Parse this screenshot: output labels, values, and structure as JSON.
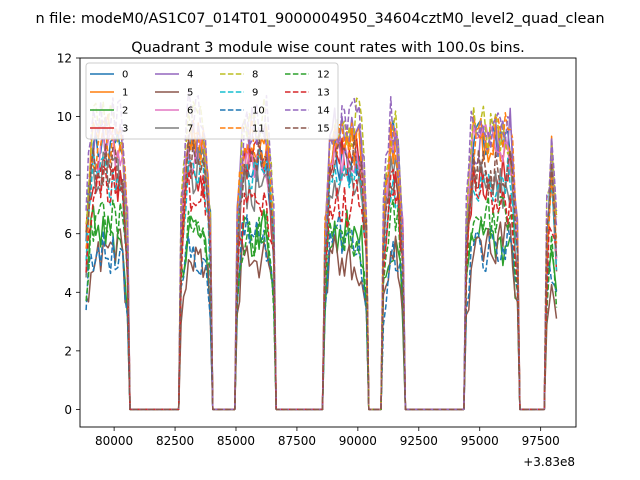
{
  "chart_data": {
    "type": "line",
    "suptitle": "n file: modeM0/AS1C07_014T01_9000004950_34604cztM0_level2_quad_clean",
    "title": "Quadrant 3 module wise count rates with 100.0s bins.",
    "xlabel": "",
    "ylabel": "",
    "x_offset_label": "+3.83e8",
    "xlim": [
      78600,
      98950
    ],
    "ylim": [
      -0.6,
      12.0
    ],
    "x_ticks": [
      80000,
      82500,
      85000,
      87500,
      90000,
      92500,
      95000,
      97500
    ],
    "x_tick_labels": [
      "80000",
      "82500",
      "85000",
      "87500",
      "90000",
      "92500",
      "95000",
      "97500"
    ],
    "y_ticks": [
      0,
      2,
      4,
      6,
      8,
      10,
      12
    ],
    "y_tick_labels": [
      "0",
      "2",
      "4",
      "6",
      "8",
      "10",
      "12"
    ],
    "grid": false,
    "legend_position": "upper-left",
    "legend_columns": 4,
    "segments": [
      {
        "start": 78850,
        "end": 80550
      },
      {
        "start": 82750,
        "end": 83950
      },
      {
        "start": 85050,
        "end": 86550
      },
      {
        "start": 88650,
        "end": 90350
      },
      {
        "start": 91050,
        "end": 91850
      },
      {
        "start": 94450,
        "end": 96550
      },
      {
        "start": 97750,
        "end": 98150
      }
    ],
    "bin_width": 100,
    "series": [
      {
        "name": "0",
        "color": "#1f77b4",
        "dash": "solid",
        "level": 8.8
      },
      {
        "name": "1",
        "color": "#ff7f0e",
        "dash": "solid",
        "level": 9.0
      },
      {
        "name": "2",
        "color": "#2ca02c",
        "dash": "solid",
        "level": 5.9
      },
      {
        "name": "3",
        "color": "#d62728",
        "dash": "solid",
        "level": 8.2
      },
      {
        "name": "4",
        "color": "#9467bd",
        "dash": "solid",
        "level": 9.4
      },
      {
        "name": "5",
        "color": "#8c564b",
        "dash": "solid",
        "level": 5.3
      },
      {
        "name": "6",
        "color": "#e377c2",
        "dash": "solid",
        "level": 8.7
      },
      {
        "name": "7",
        "color": "#7f7f7f",
        "dash": "solid",
        "level": 7.8
      },
      {
        "name": "8",
        "color": "#bcbd22",
        "dash": "dashed",
        "level": 9.6
      },
      {
        "name": "9",
        "color": "#17becf",
        "dash": "dashed",
        "level": 8.0
      },
      {
        "name": "10",
        "color": "#1f77b4",
        "dash": "dashed",
        "level": 5.7
      },
      {
        "name": "11",
        "color": "#ff7f0e",
        "dash": "dashed",
        "level": 9.2
      },
      {
        "name": "12",
        "color": "#2ca02c",
        "dash": "dashed",
        "level": 6.3
      },
      {
        "name": "13",
        "color": "#d62728",
        "dash": "dashed",
        "level": 7.2
      },
      {
        "name": "14",
        "color": "#9467bd",
        "dash": "dashed",
        "level": 9.8
      },
      {
        "name": "15",
        "color": "#8c564b",
        "dash": "dashed",
        "level": 8.4
      }
    ]
  }
}
